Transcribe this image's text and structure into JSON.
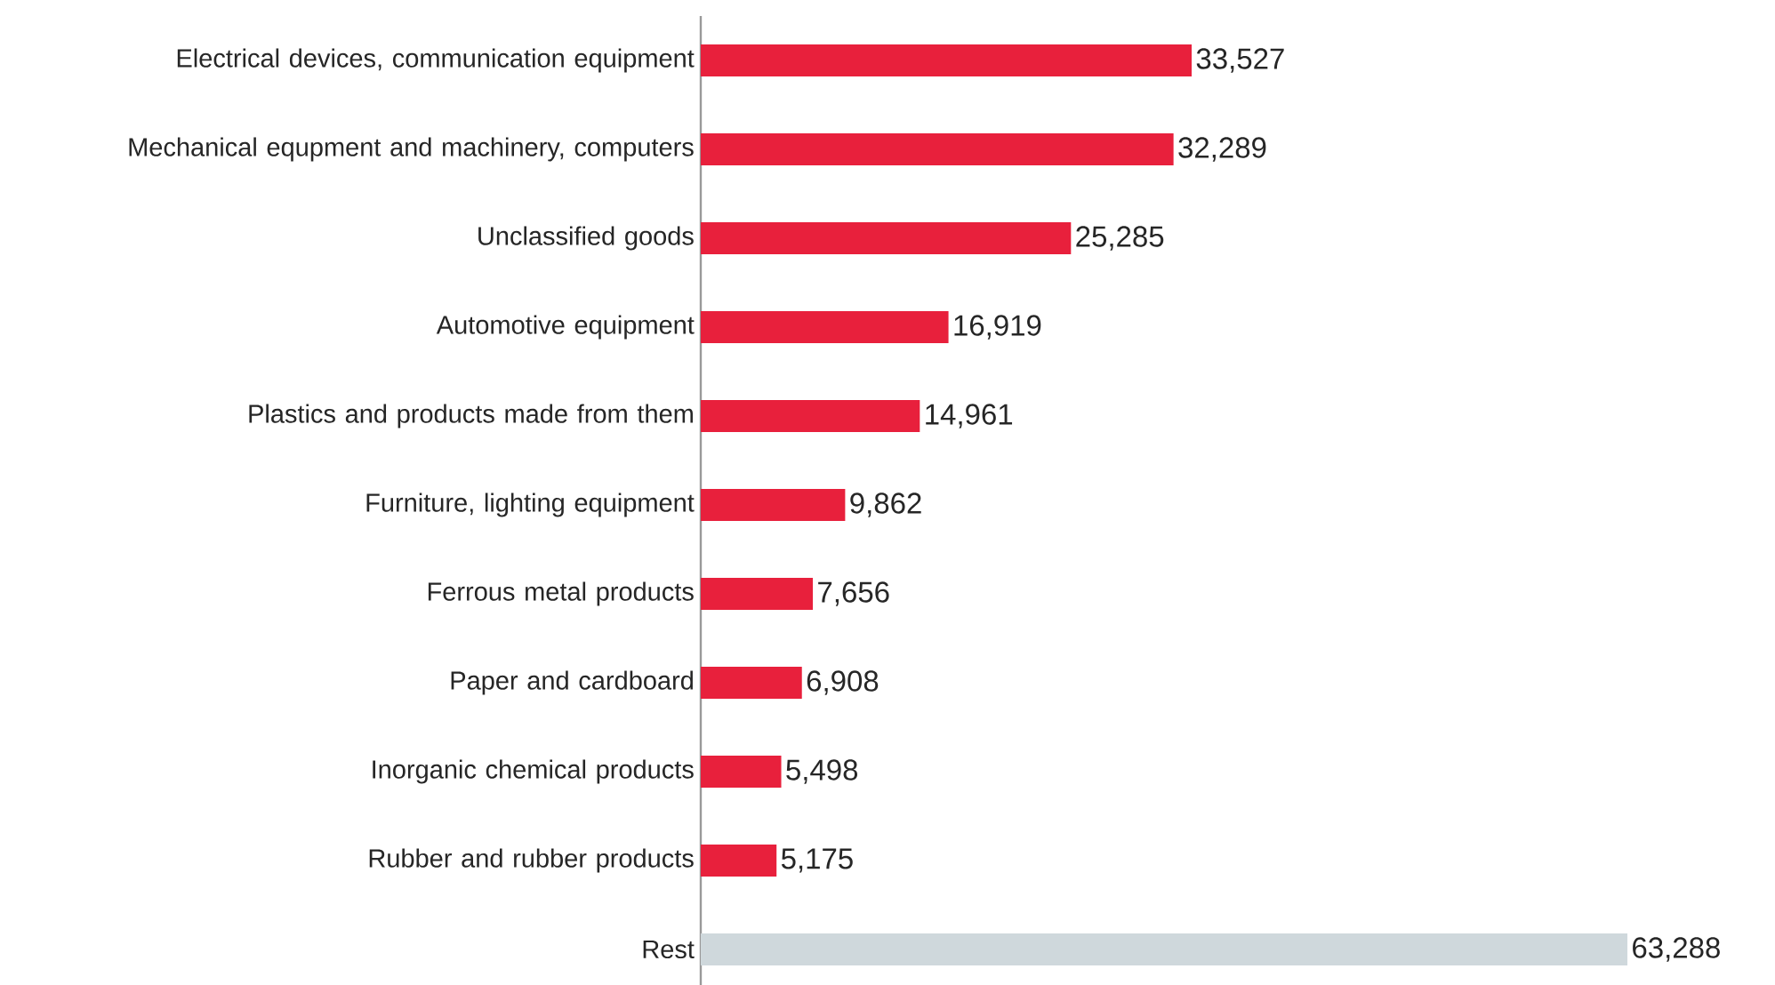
{
  "chart_data": {
    "type": "bar",
    "orientation": "horizontal",
    "categories": [
      "Electrical devices, communication equipment",
      "Mechanical equpment and machinery, computers",
      "Unclassified goods",
      "Automotive equipment",
      "Plastics and products made from them",
      "Furniture, lighting equipment",
      "Ferrous metal products",
      "Paper and cardboard",
      "Inorganic chemical products",
      "Rubber and rubber products",
      "Rest"
    ],
    "values": [
      33527,
      32289,
      25285,
      16919,
      14961,
      9862,
      7656,
      6908,
      5498,
      5175,
      63288
    ],
    "colors": [
      "#e8203c",
      "#e8203c",
      "#e8203c",
      "#e8203c",
      "#e8203c",
      "#e8203c",
      "#e8203c",
      "#e8203c",
      "#e8203c",
      "#e8203c",
      "#cfd8dc"
    ],
    "value_labels": [
      "33,527",
      "32,289",
      "25,285",
      "16,919",
      "14,961",
      "9,862",
      "7,656",
      "6,908",
      "5,498",
      "5,175",
      "63,288"
    ]
  }
}
